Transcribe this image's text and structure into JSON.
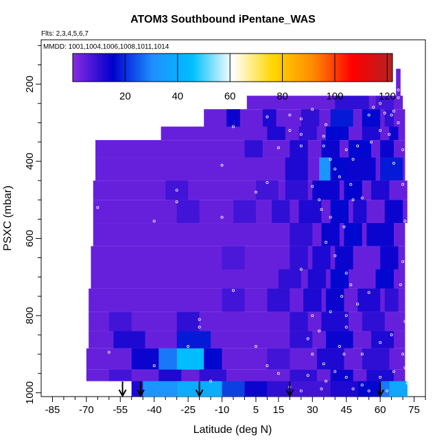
{
  "chart_data": {
    "type": "heatmap",
    "title": "ATOM3 Southbound iPentane_WAS",
    "flights_note": "Flts: 2,3,4,5,6,7",
    "dates_note": "MMDD: 1001,1004,1006,1008,1011,1014",
    "xlabel": "Latitude (deg N)",
    "ylabel": "PSXC (mbar)",
    "xlim": [
      -90,
      80
    ],
    "ylim": [
      1010,
      85
    ],
    "x_ticks": [
      -85,
      -70,
      -55,
      -40,
      -25,
      -10,
      5,
      15,
      30,
      45,
      60,
      75
    ],
    "x_tick_labels": [
      "-85",
      "-70",
      "-55",
      "-40",
      "-25",
      "-10",
      "5",
      "15",
      "30",
      "45",
      "60",
      "75"
    ],
    "y_ticks": [
      200,
      400,
      600,
      800,
      1000
    ],
    "y_tick_labels": [
      "200",
      "400",
      "600",
      "800",
      "1000"
    ],
    "colorbar": {
      "min": 0,
      "max": 122,
      "ticks": [
        20,
        40,
        60,
        80,
        100,
        120
      ],
      "tick_labels": [
        "20",
        "40",
        "60",
        "80",
        "100",
        "120"
      ],
      "colors": [
        "#8a2be2",
        "#0000cd",
        "#1e90ff",
        "#00bfff",
        "#ffffff",
        "#ffd700",
        "#ff8c00",
        "#ff0000",
        "#b22222"
      ]
    },
    "arrow_latitudes": [
      -54,
      -46,
      -20,
      20,
      60
    ],
    "bands": [
      {
        "p_top": 160,
        "p_bot": 230,
        "x_start": 67,
        "x_end": 69,
        "cells": []
      },
      {
        "p_top": 230,
        "p_bot": 265,
        "x_start": 1,
        "x_end": 70,
        "cells": [
          [
            40,
            55,
            10
          ],
          [
            58,
            66,
            8
          ]
        ]
      },
      {
        "p_top": 265,
        "p_bot": 310,
        "x_start": -18,
        "x_end": 71,
        "cells": [
          [
            -8,
            -2,
            14
          ],
          [
            8,
            14,
            12
          ],
          [
            25,
            33,
            10
          ],
          [
            38,
            48,
            18
          ],
          [
            52,
            60,
            16
          ],
          [
            62,
            66,
            10
          ]
        ]
      },
      {
        "p_top": 310,
        "p_bot": 345,
        "x_start": -37,
        "x_end": 71,
        "cells": [
          [
            10,
            18,
            12
          ],
          [
            24,
            32,
            10
          ],
          [
            36,
            46,
            16
          ],
          [
            52,
            60,
            12
          ],
          [
            64,
            68,
            14
          ]
        ]
      },
      {
        "p_top": 345,
        "p_bot": 390,
        "x_start": -66,
        "x_end": 71,
        "cells": [
          [
            0,
            8,
            10
          ],
          [
            20,
            28,
            12
          ],
          [
            34,
            42,
            14
          ],
          [
            46,
            56,
            16
          ],
          [
            60,
            66,
            14
          ]
        ]
      },
      {
        "p_top": 390,
        "p_bot": 450,
        "x_start": -66,
        "x_end": 71,
        "cells": [
          [
            18,
            28,
            12
          ],
          [
            33,
            38,
            32
          ],
          [
            38,
            46,
            16
          ],
          [
            46,
            58,
            14
          ],
          [
            60,
            70,
            18
          ]
        ]
      },
      {
        "p_top": 450,
        "p_bot": 500,
        "x_start": -67,
        "x_end": 72,
        "cells": [
          [
            -35,
            -25,
            8
          ],
          [
            5,
            15,
            8
          ],
          [
            18,
            28,
            10
          ],
          [
            30,
            42,
            14
          ],
          [
            44,
            52,
            15
          ],
          [
            56,
            64,
            12
          ]
        ]
      },
      {
        "p_top": 500,
        "p_bot": 560,
        "x_start": -67,
        "x_end": 72,
        "cells": [
          [
            -30,
            -20,
            8
          ],
          [
            -5,
            5,
            8
          ],
          [
            12,
            20,
            10
          ],
          [
            24,
            34,
            12
          ],
          [
            38,
            46,
            16
          ],
          [
            48,
            54,
            12
          ],
          [
            62,
            70,
            14
          ]
        ]
      },
      {
        "p_top": 560,
        "p_bot": 620,
        "x_start": -67,
        "x_end": 71,
        "cells": [
          [
            20,
            30,
            10
          ],
          [
            34,
            42,
            14
          ],
          [
            44,
            52,
            16
          ],
          [
            54,
            66,
            14
          ]
        ]
      },
      {
        "p_top": 620,
        "p_bot": 680,
        "x_start": -68,
        "x_end": 71,
        "cells": [
          [
            -10,
            0,
            7
          ],
          [
            20,
            28,
            10
          ],
          [
            30,
            38,
            12
          ],
          [
            40,
            48,
            14
          ],
          [
            60,
            68,
            14
          ]
        ]
      },
      {
        "p_top": 680,
        "p_bot": 730,
        "x_start": -68,
        "x_end": 71,
        "cells": [
          [
            15,
            25,
            10
          ],
          [
            28,
            36,
            12
          ],
          [
            38,
            46,
            16
          ],
          [
            58,
            66,
            16
          ]
        ]
      },
      {
        "p_top": 730,
        "p_bot": 790,
        "x_start": -69,
        "x_end": 71,
        "cells": [
          [
            -10,
            0,
            8
          ],
          [
            10,
            20,
            10
          ],
          [
            26,
            34,
            12
          ],
          [
            36,
            44,
            14
          ],
          [
            50,
            60,
            12
          ],
          [
            62,
            68,
            10
          ]
        ]
      },
      {
        "p_top": 790,
        "p_bot": 840,
        "x_start": -69,
        "x_end": 71,
        "cells": [
          [
            -60,
            -50,
            8
          ],
          [
            -30,
            -20,
            10
          ],
          [
            20,
            28,
            10
          ],
          [
            34,
            46,
            12
          ],
          [
            52,
            62,
            10
          ]
        ]
      },
      {
        "p_top": 840,
        "p_bot": 885,
        "x_start": -69,
        "x_end": 71,
        "cells": [
          [
            -58,
            -44,
            12
          ],
          [
            -30,
            -15,
            18
          ],
          [
            20,
            30,
            10
          ],
          [
            36,
            48,
            14
          ],
          [
            56,
            66,
            12
          ]
        ]
      },
      {
        "p_top": 885,
        "p_bot": 940,
        "x_start": -70,
        "x_end": 71,
        "cells": [
          [
            -50,
            -38,
            14
          ],
          [
            -38,
            -30,
            28
          ],
          [
            -30,
            -18,
            45
          ],
          [
            -18,
            -10,
            16
          ],
          [
            10,
            20,
            8
          ],
          [
            32,
            44,
            12
          ],
          [
            52,
            64,
            10
          ]
        ]
      },
      {
        "p_top": 940,
        "p_bot": 970,
        "x_start": -70,
        "x_end": 71,
        "cells": [
          [
            -60,
            -50,
            8
          ],
          [
            -38,
            -28,
            12
          ],
          [
            -20,
            -8,
            10
          ],
          [
            20,
            32,
            10
          ],
          [
            38,
            48,
            14
          ],
          [
            54,
            66,
            12
          ]
        ]
      },
      {
        "p_top": 970,
        "p_bot": 1010,
        "x_start": -50,
        "x_end": 72,
        "cells": [
          [
            -50,
            -45,
            12
          ],
          [
            -45,
            -30,
            32
          ],
          [
            -30,
            -10,
            40
          ],
          [
            -10,
            0,
            22
          ],
          [
            0,
            10,
            14
          ],
          [
            10,
            20,
            10
          ],
          [
            20,
            38,
            8
          ],
          [
            38,
            50,
            12
          ],
          [
            50,
            60,
            16
          ],
          [
            60,
            64,
            28
          ],
          [
            64,
            72,
            38
          ]
        ]
      }
    ],
    "sample_points": [
      [
        -20,
        810
      ],
      [
        -20,
        830
      ],
      [
        -25,
        880
      ],
      [
        -40,
        930
      ],
      [
        -65,
        520
      ],
      [
        -72,
        660
      ],
      [
        -60,
        895
      ],
      [
        -15,
        970
      ],
      [
        -5,
        735
      ],
      [
        -10,
        545
      ],
      [
        -40,
        555
      ],
      [
        -30,
        505
      ],
      [
        -15,
        240
      ],
      [
        -5,
        310
      ],
      [
        -10,
        410
      ],
      [
        -30,
        475
      ],
      [
        5,
        480
      ],
      [
        10,
        455
      ],
      [
        0,
        255
      ],
      [
        10,
        285
      ],
      [
        15,
        365
      ],
      [
        20,
        280
      ],
      [
        25,
        290
      ],
      [
        30,
        265
      ],
      [
        20,
        320
      ],
      [
        25,
        330
      ],
      [
        35,
        335
      ],
      [
        36,
        305
      ],
      [
        38,
        395
      ],
      [
        40,
        420
      ],
      [
        42,
        440
      ],
      [
        45,
        370
      ],
      [
        48,
        395
      ],
      [
        50,
        360
      ],
      [
        55,
        280
      ],
      [
        57,
        260
      ],
      [
        60,
        250
      ],
      [
        62,
        275
      ],
      [
        65,
        280
      ],
      [
        66,
        270
      ],
      [
        64,
        330
      ],
      [
        66,
        405
      ],
      [
        68,
        215
      ],
      [
        68,
        235
      ],
      [
        68,
        300
      ],
      [
        70,
        370
      ],
      [
        70,
        460
      ],
      [
        71,
        555
      ],
      [
        70,
        660
      ],
      [
        69,
        720
      ],
      [
        71,
        815
      ],
      [
        70,
        900
      ],
      [
        71,
        935
      ],
      [
        72,
        975
      ],
      [
        66,
        945
      ],
      [
        63,
        995
      ],
      [
        60,
        960
      ],
      [
        55,
        995
      ],
      [
        52,
        980
      ],
      [
        48,
        990
      ],
      [
        45,
        960
      ],
      [
        44,
        900
      ],
      [
        42,
        880
      ],
      [
        40,
        945
      ],
      [
        35,
        925
      ],
      [
        36,
        970
      ],
      [
        34,
        990
      ],
      [
        30,
        900
      ],
      [
        28,
        860
      ],
      [
        33,
        840
      ],
      [
        38,
        790
      ],
      [
        45,
        830
      ],
      [
        50,
        770
      ],
      [
        55,
        740
      ],
      [
        47,
        720
      ],
      [
        45,
        690
      ],
      [
        40,
        645
      ],
      [
        36,
        610
      ],
      [
        34,
        525
      ],
      [
        38,
        545
      ],
      [
        44,
        570
      ],
      [
        48,
        500
      ],
      [
        52,
        495
      ],
      [
        47,
        460
      ],
      [
        33,
        500
      ],
      [
        30,
        465
      ],
      [
        25,
        360
      ],
      [
        35,
        360
      ],
      [
        56,
        350
      ],
      [
        60,
        320
      ],
      [
        5,
        880
      ],
      [
        10,
        930
      ],
      [
        15,
        950
      ],
      [
        20,
        985
      ],
      [
        25,
        995
      ],
      [
        28,
        955
      ],
      [
        30,
        800
      ],
      [
        25,
        680
      ],
      [
        43,
        750
      ],
      [
        45,
        800
      ],
      [
        52,
        900
      ],
      [
        60,
        870
      ],
      [
        65,
        850
      ]
    ]
  }
}
